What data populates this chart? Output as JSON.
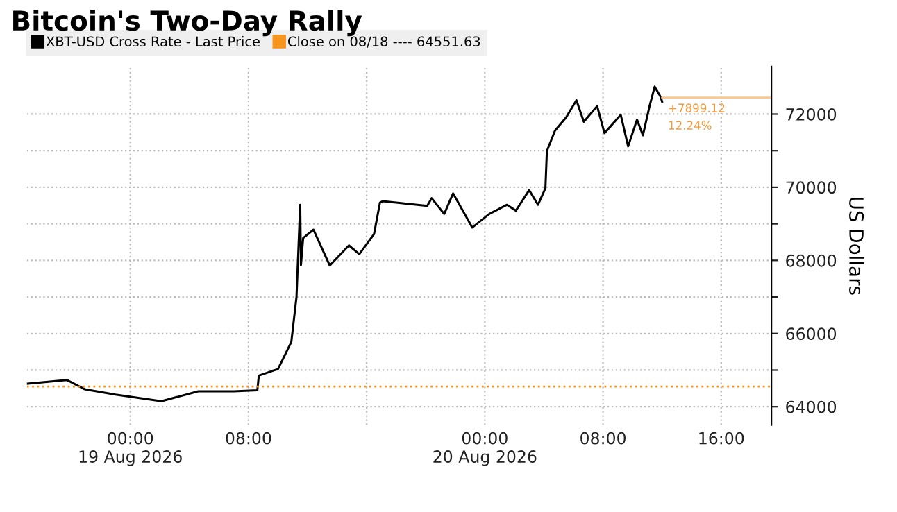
{
  "chart_data": {
    "type": "line",
    "title": "Bitcoin's Two-Day Rally",
    "ylabel": "US Dollars",
    "series": [
      {
        "name": "XBT-USD Cross Rate - Last Price",
        "color": "#000000",
        "x": [
          "2026-08-18T17:02",
          "2026-08-18T19:42",
          "2026-08-18T20:54",
          "2026-08-18T23:00",
          "2026-08-19T02:06",
          "2026-08-19T04:36",
          "2026-08-19T07:00",
          "2026-08-19T08:36",
          "2026-08-19T08:42",
          "2026-08-19T10:00",
          "2026-08-19T10:54",
          "2026-08-19T11:15",
          "2026-08-19T11:30",
          "2026-08-19T11:33",
          "2026-08-19T11:42",
          "2026-08-19T12:24",
          "2026-08-19T13:30",
          "2026-08-19T14:48",
          "2026-08-19T15:30",
          "2026-08-19T16:30",
          "2026-08-19T16:54",
          "2026-08-19T17:06",
          "2026-08-19T20:06",
          "2026-08-19T20:24",
          "2026-08-19T21:15",
          "2026-08-19T21:51",
          "2026-08-19T23:09",
          "2026-08-20T00:18",
          "2026-08-20T01:30",
          "2026-08-20T02:06",
          "2026-08-20T03:00",
          "2026-08-20T03:36",
          "2026-08-20T04:06",
          "2026-08-20T04:12",
          "2026-08-20T04:45",
          "2026-08-20T05:30",
          "2026-08-20T06:12",
          "2026-08-20T06:42",
          "2026-08-20T07:36",
          "2026-08-20T08:06",
          "2026-08-20T09:12",
          "2026-08-20T09:42",
          "2026-08-20T10:18",
          "2026-08-20T10:42",
          "2026-08-20T11:09",
          "2026-08-20T11:30",
          "2026-08-20T11:54",
          "2026-08-20T12:00"
        ],
        "values": [
          64630,
          64730,
          64480,
          64330,
          64150,
          64420,
          64420,
          64450,
          64850,
          65030,
          65770,
          67000,
          69520,
          67870,
          68610,
          68840,
          67860,
          68410,
          68170,
          68720,
          69580,
          69620,
          69490,
          69700,
          69270,
          69830,
          68900,
          69270,
          69520,
          69360,
          69920,
          69520,
          69970,
          70990,
          71550,
          71910,
          72380,
          71790,
          72220,
          71480,
          71980,
          71120,
          71850,
          71420,
          72220,
          72750,
          72470,
          72340
        ]
      }
    ],
    "ref_lines": [
      {
        "axis": "y",
        "value": 64551.63,
        "label": "Close on 08/18 ---- 64551.63",
        "color": "#f7941d",
        "line_style": "dotted"
      },
      {
        "axis": "y",
        "value": 72450.75,
        "color": "#fbc98e",
        "line_style": "solid"
      }
    ],
    "annotations": [
      "+7899.12",
      "12.24%"
    ],
    "xlim": [
      "2026-08-18T17:00",
      "2026-08-20T19:24"
    ],
    "xticks": [
      {
        "value": "2026-08-19T00:00",
        "label": "00:00\n19 Aug 2026"
      },
      {
        "value": "2026-08-19T08:00",
        "label": "08:00"
      },
      {
        "value": "2026-08-19T16:00",
        "label": null
      },
      {
        "value": "2026-08-20T00:00",
        "label": "00:00\n20 Aug 2026"
      },
      {
        "value": "2026-08-20T08:00",
        "label": "08:00"
      },
      {
        "value": "2026-08-20T16:00",
        "label": "16:00"
      }
    ],
    "ylim": [
      63500,
      73300
    ],
    "yticks": [
      64000,
      {
        "value": 65000,
        "label": null
      },
      66000,
      {
        "value": 67000,
        "label": null
      },
      68000,
      {
        "value": 69000,
        "label": null
      },
      70000,
      {
        "value": 71000,
        "label": null
      },
      72000
    ],
    "grid": true,
    "legend": "top left",
    "line_style": "solid",
    "marker": "none"
  }
}
